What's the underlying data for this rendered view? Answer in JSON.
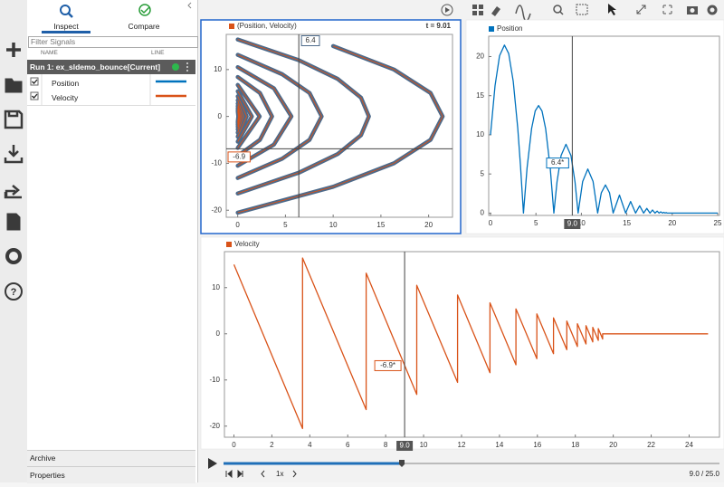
{
  "sidebar": {
    "tabs": [
      "Inspect",
      "Compare"
    ],
    "filter_placeholder": "Filter Signals",
    "columns": [
      "NAME",
      "LINE"
    ],
    "run": "Run 1: ex_sldemo_bounce[Current]",
    "signals": [
      {
        "name": "Position",
        "color": "#0072bd"
      },
      {
        "name": "Velocity",
        "color": "#d95319"
      }
    ],
    "archive": "Archive",
    "properties": "Properties"
  },
  "playback": {
    "speed": "1x",
    "time": "9.0 / 25.0"
  },
  "chart_data": [
    {
      "type": "xy",
      "title": "(Position, Velocity)",
      "time_label": "t = 9.01",
      "marker_color": "#4d6a8a",
      "line_color": "#d95319",
      "x": [
        10,
        16.37,
        20.2,
        21.47,
        20.2,
        16.37,
        10,
        0,
        null,
        0,
        6.4,
        10.48,
        12.92,
        13.74,
        12.92,
        10.48,
        6.4,
        0,
        null,
        0,
        4.66,
        7.52,
        8.79,
        7.52,
        4.66,
        0,
        null,
        0,
        3.8,
        5.63,
        3.8,
        0,
        null,
        0,
        2.33,
        3.6,
        2.33,
        0,
        null,
        0,
        2.3,
        0,
        null,
        0,
        1.48,
        0,
        null,
        0,
        0.94,
        0,
        null,
        0,
        0.6,
        0,
        null,
        0,
        0.39,
        0,
        null,
        0,
        0.25,
        0,
        null,
        0,
        0.16,
        0,
        null,
        0,
        0.1,
        0,
        null,
        0,
        0.065,
        0
      ],
      "values": [
        15,
        10,
        5,
        0,
        -5,
        -10,
        -15,
        -20.52,
        null,
        16.42,
        12,
        8,
        4,
        0,
        -4,
        -8,
        -12,
        -16.42,
        null,
        13.13,
        9,
        5,
        0,
        -5,
        -9,
        -13.13,
        null,
        10.51,
        6,
        0,
        -6,
        -10.51,
        null,
        8.41,
        5,
        0,
        -5,
        -8.41,
        null,
        6.72,
        0,
        -6.72,
        null,
        5.38,
        0,
        -5.38,
        null,
        4.3,
        0,
        -4.3,
        null,
        3.44,
        0,
        -3.44,
        null,
        2.75,
        0,
        -2.75,
        null,
        2.2,
        0,
        -2.2,
        null,
        1.76,
        0,
        -1.76,
        null,
        1.41,
        0,
        -1.41,
        null,
        1.13,
        0,
        -1.13
      ],
      "xlim": [
        -1.2,
        22.5
      ],
      "ylim": [
        -21.5,
        17.5
      ],
      "xticks": [
        0,
        5,
        10,
        15,
        20
      ],
      "yticks": [
        -20,
        -10,
        0,
        10
      ],
      "cursor": {
        "x": 6.4,
        "y": -6.9
      }
    },
    {
      "type": "line",
      "title": "Position",
      "color": "#0072bd",
      "x": [
        0,
        0.5,
        1,
        1.53,
        2,
        2.5,
        3,
        3.3,
        3.62,
        4.02,
        4.52,
        4.92,
        5.29,
        5.67,
        6.07,
        6.57,
        6.97,
        7.32,
        7.77,
        8.31,
        8.85,
        9.3,
        9.64,
        10.14,
        10.71,
        11.28,
        11.79,
        12.19,
        12.65,
        13.1,
        13.5,
        14.19,
        14.87,
        15.42,
        15.97,
        16.41,
        16.85,
        17.2,
        17.55,
        17.83,
        18.11,
        18.34,
        18.56,
        18.74,
        18.92,
        19.07,
        19.21,
        19.33,
        19.44,
        25
      ],
      "values": [
        10,
        16.27,
        20.1,
        21.47,
        20.38,
        16.84,
        10.86,
        6.08,
        0,
        5.78,
        10.8,
        13.06,
        13.74,
        13.05,
        10.79,
        5.75,
        0,
        4,
        7.37,
        8.79,
        7.35,
        3.96,
        0,
        4.03,
        5.63,
        4.05,
        0,
        2.58,
        3.6,
        2.6,
        0,
        2.3,
        0,
        1.48,
        0,
        0.94,
        0,
        0.6,
        0,
        0.39,
        0,
        0.25,
        0,
        0.16,
        0,
        0.1,
        0,
        0.065,
        0,
        0
      ],
      "xlim": [
        -0.2,
        25.2
      ],
      "ylim": [
        -0.3,
        22.6
      ],
      "xticks": [
        0,
        5,
        10,
        15,
        20,
        25
      ],
      "yticks": [
        0,
        5,
        10,
        15,
        20
      ],
      "cursor": {
        "x": {
          "value": 9,
          "label": "9.0"
        },
        "readout": {
          "value": 6.4,
          "label": "6.4*"
        }
      }
    },
    {
      "type": "line",
      "title": "Velocity",
      "color": "#d95319",
      "x": [
        0,
        3.62,
        3.62,
        6.97,
        6.97,
        9.64,
        9.64,
        11.79,
        11.79,
        13.5,
        13.5,
        14.87,
        14.87,
        15.97,
        15.97,
        16.85,
        16.85,
        17.55,
        17.55,
        18.11,
        18.11,
        18.56,
        18.56,
        18.92,
        18.92,
        19.21,
        19.21,
        19.44,
        19.44,
        25
      ],
      "values": [
        15,
        -20.52,
        16.42,
        -16.42,
        13.13,
        -13.13,
        10.51,
        -10.51,
        8.41,
        -8.41,
        6.72,
        -6.72,
        5.38,
        -5.38,
        4.3,
        -4.3,
        3.44,
        -3.44,
        2.75,
        -2.75,
        2.2,
        -2.2,
        1.76,
        -1.76,
        1.41,
        -1.41,
        1.13,
        -1.13,
        0,
        0
      ],
      "xlim": [
        -0.5,
        25.6
      ],
      "ylim": [
        -22.4,
        17.8
      ],
      "xticks": [
        0,
        2,
        4,
        6,
        8,
        10,
        12,
        14,
        16,
        18,
        20,
        22,
        24
      ],
      "yticks": [
        -20,
        -10,
        0,
        10
      ],
      "cursor": {
        "x": {
          "value": 9,
          "label": "9.0"
        },
        "readout": {
          "value": -6.9,
          "label": "-6.9*"
        }
      }
    }
  ]
}
